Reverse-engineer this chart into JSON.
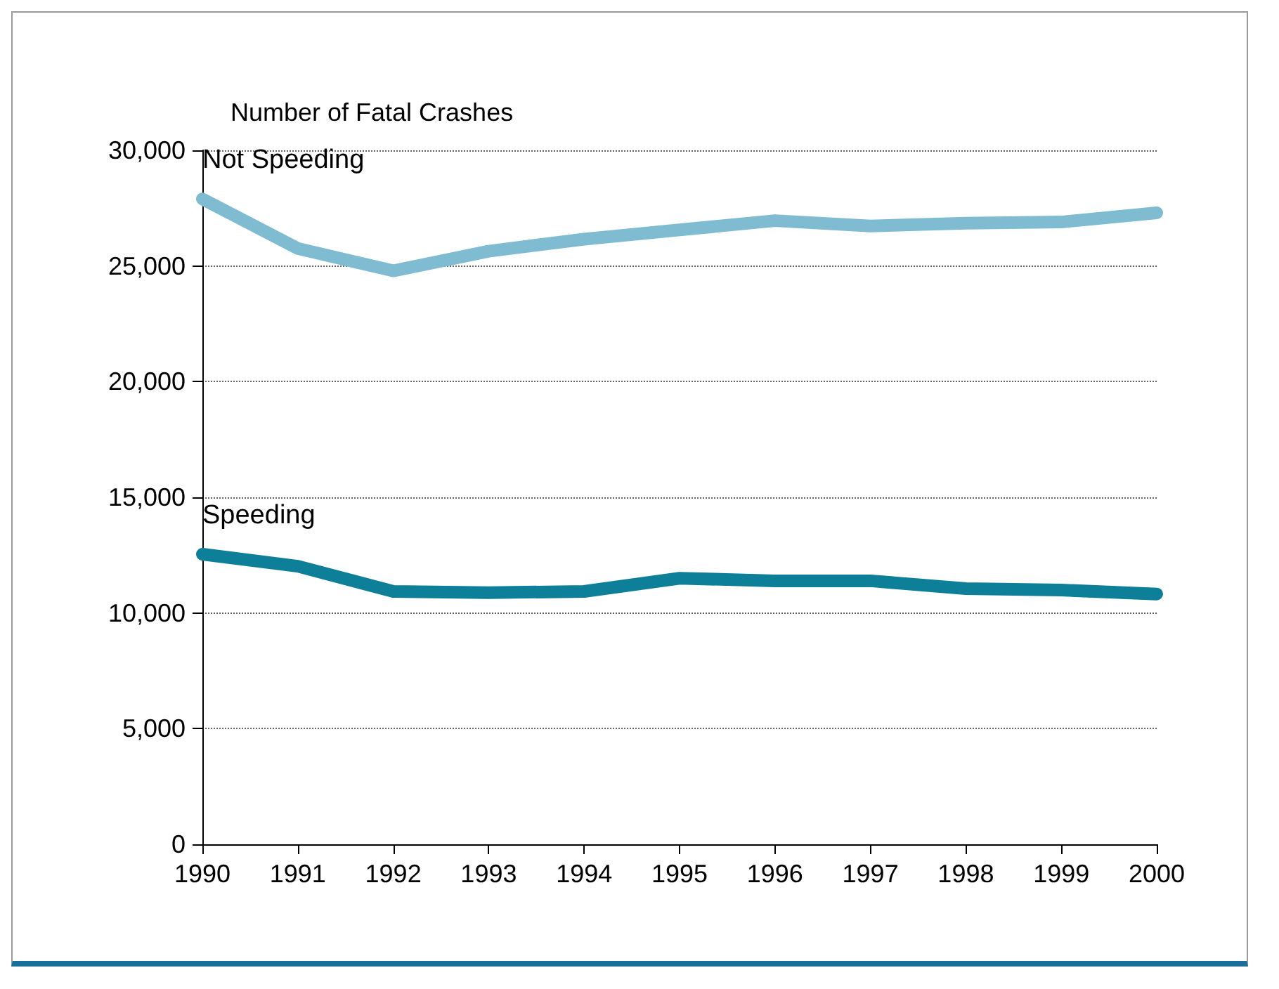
{
  "chart_data": {
    "type": "line",
    "ylabel": "Number of Fatal Crashes",
    "x": [
      1990,
      1991,
      1992,
      1993,
      1994,
      1995,
      1996,
      1997,
      1998,
      1999,
      2000
    ],
    "series": [
      {
        "name": "Not Speeding",
        "color": "#7fbcd2",
        "values": [
          27900,
          25760,
          24790,
          25640,
          26160,
          26560,
          26960,
          26730,
          26850,
          26900,
          27300
        ]
      },
      {
        "name": "Speeding",
        "color": "#0e7f98",
        "values": [
          12540,
          12020,
          10930,
          10880,
          10930,
          11500,
          11390,
          11390,
          11050,
          10990,
          10820
        ]
      }
    ],
    "xlim": [
      1990,
      2000
    ],
    "xticks": [
      1990,
      1991,
      1992,
      1993,
      1994,
      1995,
      1996,
      1997,
      1998,
      1999,
      2000
    ],
    "ylim": [
      0,
      30000
    ],
    "yticks": [
      0,
      {
        "value": 5000,
        "label": "5,000"
      },
      {
        "value": 10000,
        "label": "10,000"
      },
      {
        "value": 15000,
        "label": "15,000"
      },
      {
        "value": 20000,
        "label": "20,000"
      },
      {
        "value": 25000,
        "label": "25,000"
      },
      {
        "value": 30000,
        "label": "30,000"
      }
    ],
    "grid": "y",
    "legend": false,
    "marker": "none",
    "line_style": "solid"
  }
}
